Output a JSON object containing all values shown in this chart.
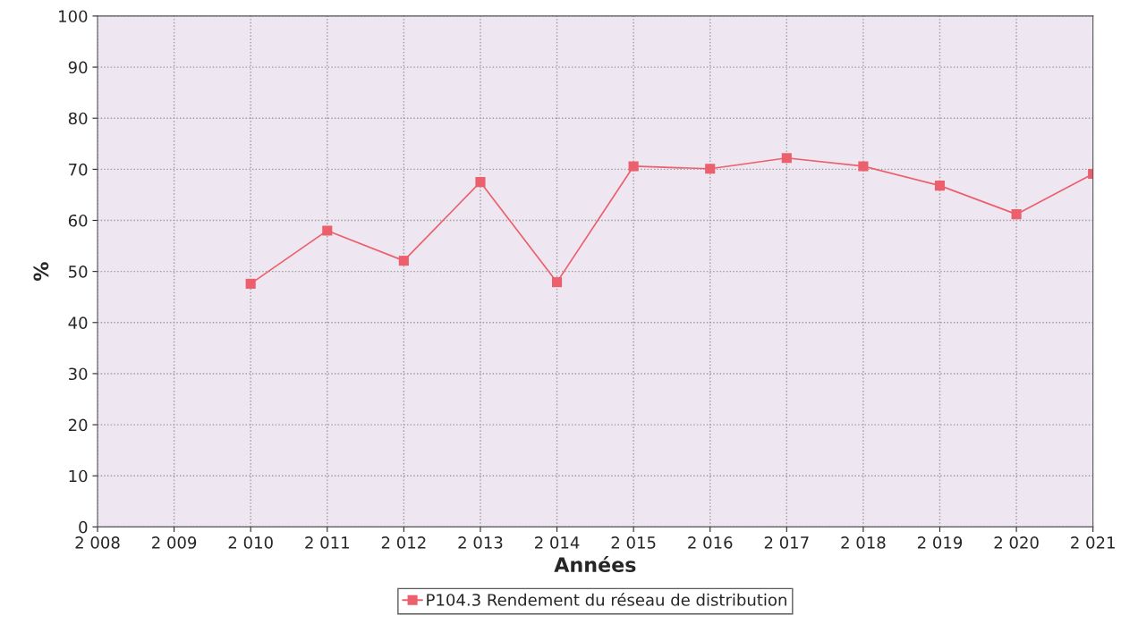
{
  "chart_data": {
    "type": "line",
    "xlabel": "Années",
    "ylabel": "%",
    "x": [
      2010,
      2011,
      2012,
      2013,
      2014,
      2015,
      2016,
      2017,
      2018,
      2019,
      2020,
      2021
    ],
    "series": [
      {
        "name": "P104.3 Rendement du réseau de distribution",
        "color": "#ec5f6c",
        "values": [
          47.6,
          58.0,
          52.1,
          67.5,
          47.9,
          70.6,
          70.1,
          72.2,
          70.6,
          66.8,
          61.2,
          69.1
        ]
      }
    ],
    "xlim": [
      2008,
      2021
    ],
    "xticks": [
      {
        "value": 2008,
        "label": "2 008"
      },
      {
        "value": 2009,
        "label": "2 009"
      },
      {
        "value": 2010,
        "label": "2 010"
      },
      {
        "value": 2011,
        "label": "2 011"
      },
      {
        "value": 2012,
        "label": "2 012"
      },
      {
        "value": 2013,
        "label": "2 013"
      },
      {
        "value": 2014,
        "label": "2 014"
      },
      {
        "value": 2015,
        "label": "2 015"
      },
      {
        "value": 2016,
        "label": "2 016"
      },
      {
        "value": 2017,
        "label": "2 017"
      },
      {
        "value": 2018,
        "label": "2 018"
      },
      {
        "value": 2019,
        "label": "2 019"
      },
      {
        "value": 2020,
        "label": "2 020"
      },
      {
        "value": 2021,
        "label": "2 021"
      }
    ],
    "ylim": [
      0,
      100
    ],
    "yticks": [
      0,
      10,
      20,
      30,
      40,
      50,
      60,
      70,
      80,
      90,
      100
    ],
    "grid": true,
    "legend": "bottom",
    "marker": "square",
    "line_style": "solid"
  }
}
